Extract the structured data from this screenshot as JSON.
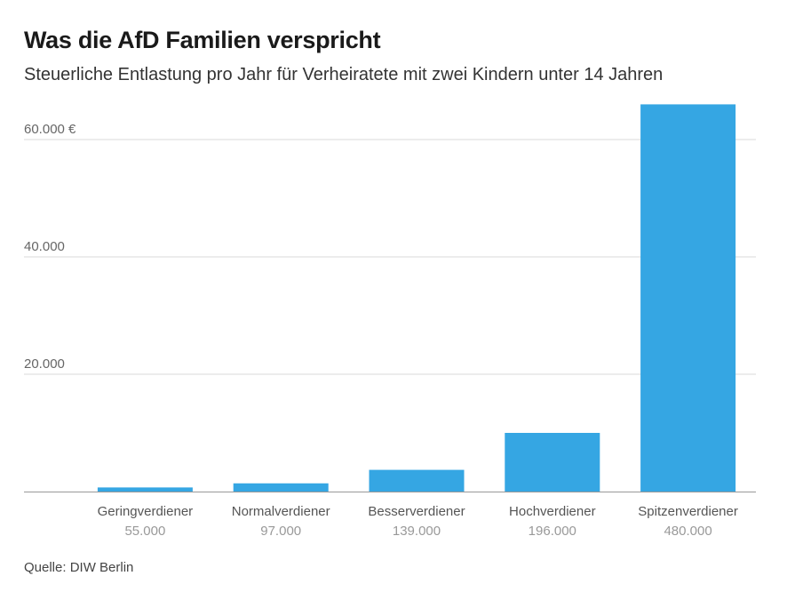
{
  "chart_data": {
    "type": "bar",
    "title": "Was die AfD Familien verspricht",
    "subtitle": "Steuerliche Entlastung pro Jahr für Verheiratete mit zwei Kindern unter 14 Jahren",
    "categories": [
      "Geringverdiener",
      "Normalverdiener",
      "Besserverdiener",
      "Hochverdiener",
      "Spitzenverdiener"
    ],
    "category_sublabels": [
      "55.000",
      "97.000",
      "139.000",
      "196.000",
      "480.000"
    ],
    "values": [
      700,
      1400,
      3700,
      10000,
      66000
    ],
    "y_ticks": [
      {
        "value": 20000,
        "label": "20.000"
      },
      {
        "value": 40000,
        "label": "40.000"
      },
      {
        "value": 60000,
        "label": "60.000 €"
      }
    ],
    "ylim": [
      0,
      66000
    ],
    "grid": true,
    "bar_color": "#35a6e3",
    "source": "Quelle: DIW Berlin"
  }
}
